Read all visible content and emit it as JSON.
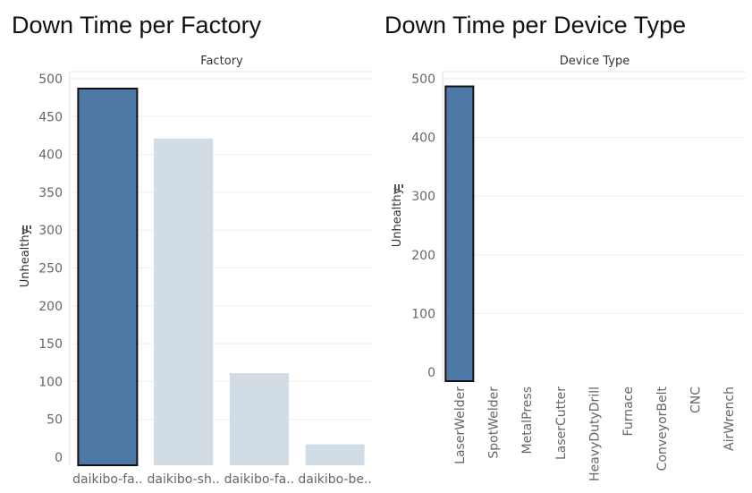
{
  "panels": [
    {
      "title": "Down Time per Factory"
    },
    {
      "title": "Down Time per Device Type"
    }
  ],
  "chart_data": [
    {
      "type": "bar",
      "header": "Factory",
      "ylabel": "Unhealthy",
      "ylim": [
        0,
        500
      ],
      "yticks": [
        0,
        50,
        100,
        150,
        200,
        250,
        300,
        350,
        400,
        450,
        500
      ],
      "categories": [
        "daikibo-fa..",
        "daikibo-sh..",
        "daikibo-fa..",
        "daikibo-be.."
      ],
      "values": [
        487,
        421,
        111,
        17
      ],
      "selected_index": 0,
      "colors": {
        "selected": "#4e79a7",
        "dimmed": "#d2dce4"
      },
      "grid": true
    },
    {
      "type": "bar",
      "header": "Device Type",
      "ylabel": "Unhealthy",
      "ylim": [
        0,
        500
      ],
      "yticks": [
        0,
        100,
        200,
        300,
        400,
        500
      ],
      "categories": [
        "LaserWelder",
        "SpotWelder",
        "MetalPress",
        "LaserCutter",
        "HeavyDutyDrill",
        "Furnace",
        "ConveyorBelt",
        "CNC",
        "AirWrench"
      ],
      "values": [
        487,
        0,
        0,
        0,
        0,
        0,
        0,
        0,
        0
      ],
      "selected_index": 0,
      "colors": {
        "selected": "#4e79a7",
        "dimmed": "#d2dce4"
      },
      "grid": true
    }
  ]
}
